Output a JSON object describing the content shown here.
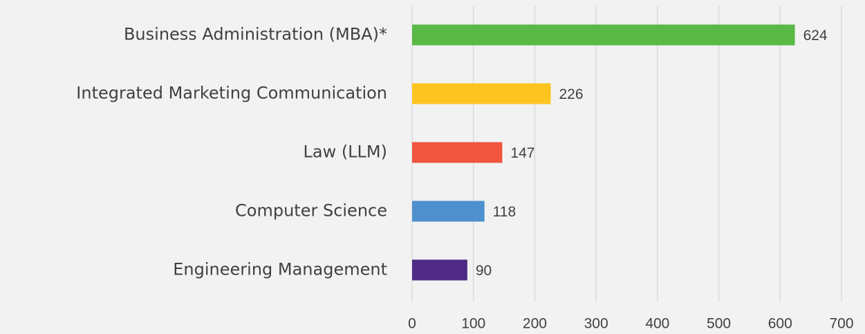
{
  "chart_data": {
    "type": "bar",
    "orientation": "horizontal",
    "categories": [
      "Business Administration (MBA)*",
      "Integrated Marketing Communication",
      "Law (LLM)",
      "Computer Science",
      "Engineering Management"
    ],
    "values": [
      624,
      226,
      147,
      118,
      90
    ],
    "colors": [
      "#5ab946",
      "#fdc420",
      "#f1553f",
      "#4f91cf",
      "#4f2a86"
    ],
    "xlim": [
      0,
      700
    ],
    "xticks": [
      0,
      100,
      200,
      300,
      400,
      500,
      600,
      700
    ],
    "grid": true
  }
}
